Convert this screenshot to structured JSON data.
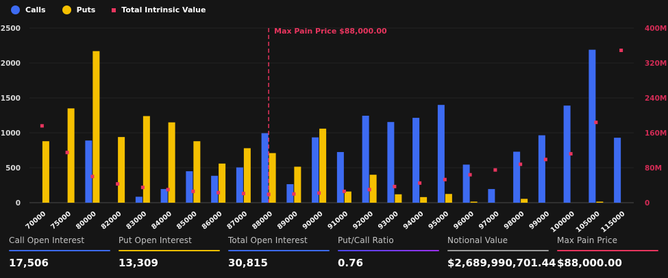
{
  "legend": {
    "items": [
      {
        "label": "Calls",
        "color": "#3D6BF2",
        "shape": "circle"
      },
      {
        "label": "Puts",
        "color": "#F5C001",
        "shape": "circle"
      },
      {
        "label": "Total Intrinsic Value",
        "color": "#E8355E",
        "shape": "square"
      }
    ]
  },
  "chart_data": {
    "type": "bar",
    "categories": [
      "70000",
      "75000",
      "80000",
      "82000",
      "83000",
      "84000",
      "85000",
      "86000",
      "87000",
      "88000",
      "89000",
      "90000",
      "91000",
      "92000",
      "93000",
      "94000",
      "95000",
      "96000",
      "97000",
      "98000",
      "99000",
      "100000",
      "105000",
      "115000"
    ],
    "series": [
      {
        "name": "Calls",
        "type": "bar",
        "color": "#3D6BF2",
        "values": [
          0,
          0,
          890,
          0,
          85,
          195,
          450,
          385,
          505,
          995,
          265,
          935,
          725,
          1245,
          1155,
          1215,
          1400,
          545,
          195,
          730,
          965,
          1390,
          2190,
          930
        ]
      },
      {
        "name": "Puts",
        "type": "bar",
        "color": "#F5C001",
        "values": [
          880,
          1350,
          2170,
          940,
          1240,
          1150,
          880,
          560,
          780,
          710,
          515,
          1060,
          160,
          400,
          120,
          80,
          125,
          15,
          0,
          55,
          0,
          0,
          15,
          0
        ]
      },
      {
        "name": "Total Intrinsic Value",
        "type": "scatter",
        "color": "#E8355E",
        "unit": "M",
        "axis": "right",
        "values": [
          176,
          115,
          60,
          43,
          35,
          30,
          26,
          23,
          21,
          19,
          20,
          22,
          26,
          30,
          37,
          45,
          53,
          64,
          75,
          88,
          99,
          112,
          184,
          349
        ]
      }
    ],
    "left_axis": {
      "ticks": [
        0,
        500,
        1000,
        1500,
        2000,
        2500
      ],
      "max": 2500,
      "color": "#d8d8d8"
    },
    "right_axis": {
      "ticks": [
        "0",
        "80M",
        "160M",
        "240M",
        "320M",
        "400M"
      ],
      "max": 400,
      "color": "#D22B55"
    },
    "x_axis": {
      "label_color": "#f2f2f2"
    },
    "annotation": {
      "label": "Max Pain Price $88,000.00",
      "category": "88000",
      "color": "#E8355E"
    },
    "grid": true,
    "legend_position": "top-left"
  },
  "stats": {
    "items": [
      {
        "label": "Call Open Interest",
        "value": "17,506",
        "accent": "#3D6BF2"
      },
      {
        "label": "Put Open Interest",
        "value": "13,309",
        "accent": "#F5C001"
      },
      {
        "label": "Total Open Interest",
        "value": "30,815",
        "accent": "#3D6BF2"
      },
      {
        "label": "Put/Call Ratio",
        "value": "0.76",
        "accent": "linear-gradient(90deg,#4c49ee,#9b30f0)"
      },
      {
        "label": "Notional Value",
        "value": "$2,689,990,701.44",
        "accent": "#9a9a9a"
      },
      {
        "label": "Max Pain Price",
        "value": "$88,000.00",
        "accent": "#E8355E"
      }
    ]
  }
}
